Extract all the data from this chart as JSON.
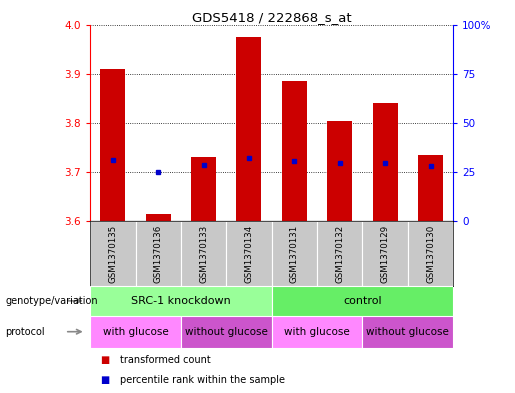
{
  "title": "GDS5418 / 222868_s_at",
  "samples": [
    "GSM1370135",
    "GSM1370136",
    "GSM1370133",
    "GSM1370134",
    "GSM1370131",
    "GSM1370132",
    "GSM1370129",
    "GSM1370130"
  ],
  "transformed_count": [
    3.91,
    3.615,
    3.73,
    3.975,
    3.885,
    3.805,
    3.84,
    3.735
  ],
  "percentile_rank": [
    3.725,
    3.7,
    3.715,
    3.728,
    3.722,
    3.718,
    3.718,
    3.712
  ],
  "ylim": [
    3.6,
    4.0
  ],
  "y2lim": [
    0,
    100
  ],
  "yticks": [
    3.6,
    3.7,
    3.8,
    3.9,
    4.0
  ],
  "y2ticks": [
    0,
    25,
    50,
    75,
    100
  ],
  "y2ticklabels": [
    "0",
    "25",
    "50",
    "75",
    "100%"
  ],
  "bar_color": "#cc0000",
  "dot_color": "#0000cc",
  "sample_bg": "#c8c8c8",
  "genotype_groups": [
    {
      "label": "SRC-1 knockdown",
      "span": [
        0,
        4
      ],
      "color": "#99ff99"
    },
    {
      "label": "control",
      "span": [
        4,
        8
      ],
      "color": "#66ee66"
    }
  ],
  "protocol_groups": [
    {
      "label": "with glucose",
      "span": [
        0,
        2
      ],
      "color": "#ff88ff"
    },
    {
      "label": "without glucose",
      "span": [
        2,
        4
      ],
      "color": "#cc55cc"
    },
    {
      "label": "with glucose",
      "span": [
        4,
        6
      ],
      "color": "#ff88ff"
    },
    {
      "label": "without glucose",
      "span": [
        6,
        8
      ],
      "color": "#cc55cc"
    }
  ],
  "legend_items": [
    {
      "label": "transformed count",
      "color": "#cc0000"
    },
    {
      "label": "percentile rank within the sample",
      "color": "#0000cc"
    }
  ],
  "left_labels": [
    "genotype/variation",
    "protocol"
  ],
  "arrow_color": "#888888"
}
